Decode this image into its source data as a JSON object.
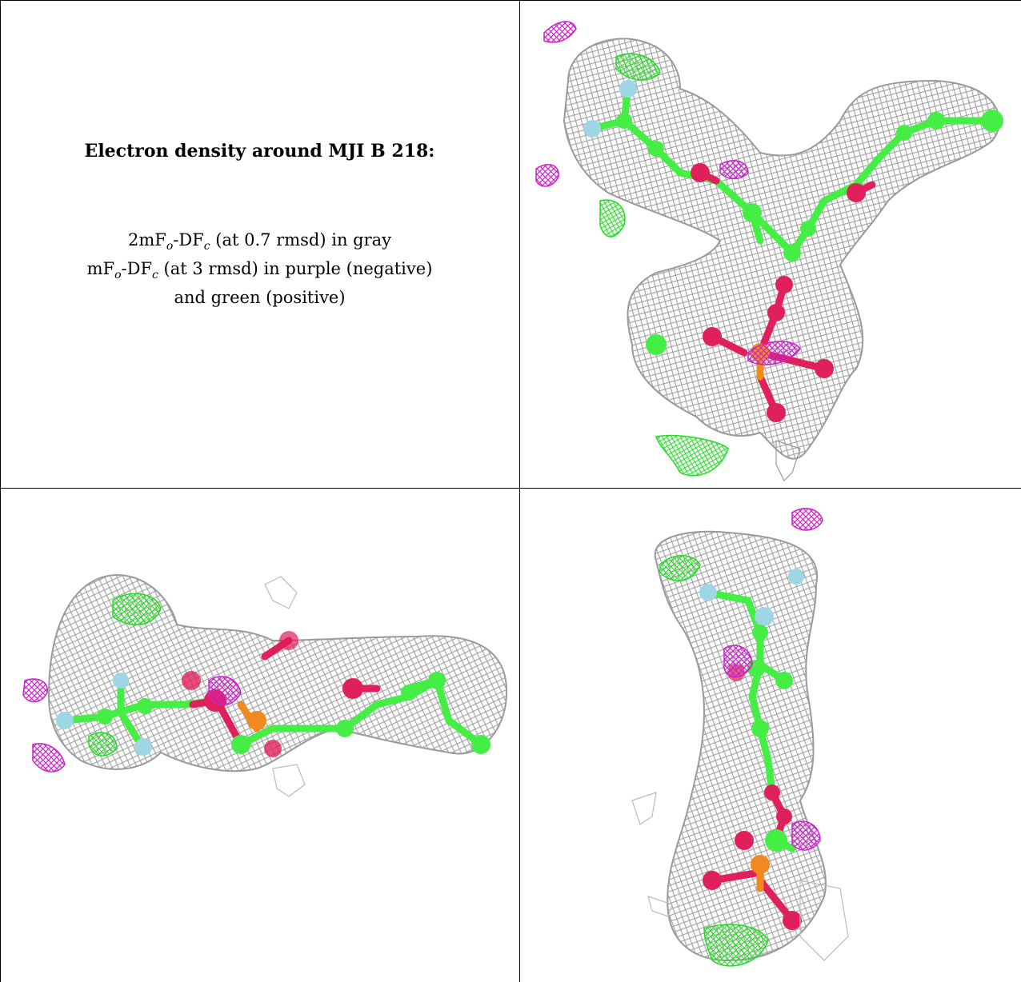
{
  "caption": {
    "title": "Electron density around MJI B 218:",
    "line1_a": "2mF",
    "line1_sub1": "o",
    "line1_b": "-DF",
    "line1_sub2": "c",
    "line1_c": " (at 0.7 rmsd) in gray",
    "line2_a": "mF",
    "line2_sub1": "o",
    "line2_b": "-DF",
    "line2_sub2": "c",
    "line2_c": " (at 3 rmsd) in purple (negative)",
    "line3": "and green (positive)"
  },
  "colors": {
    "mesh_gray": "#9a9a9a",
    "mesh_purple": "#cc22cc",
    "mesh_green": "#22dd22",
    "carbon": "#44ee44",
    "oxygen": "#e0205a",
    "phosphorus": "#f08a20",
    "fluorine": "#9fd6e6"
  },
  "panels": [
    {
      "name": "view-top-right",
      "description_icon": "molecule-density-icon"
    },
    {
      "name": "view-bottom-left",
      "description_icon": "molecule-density-icon"
    },
    {
      "name": "view-bottom-right",
      "description_icon": "molecule-density-icon"
    }
  ]
}
